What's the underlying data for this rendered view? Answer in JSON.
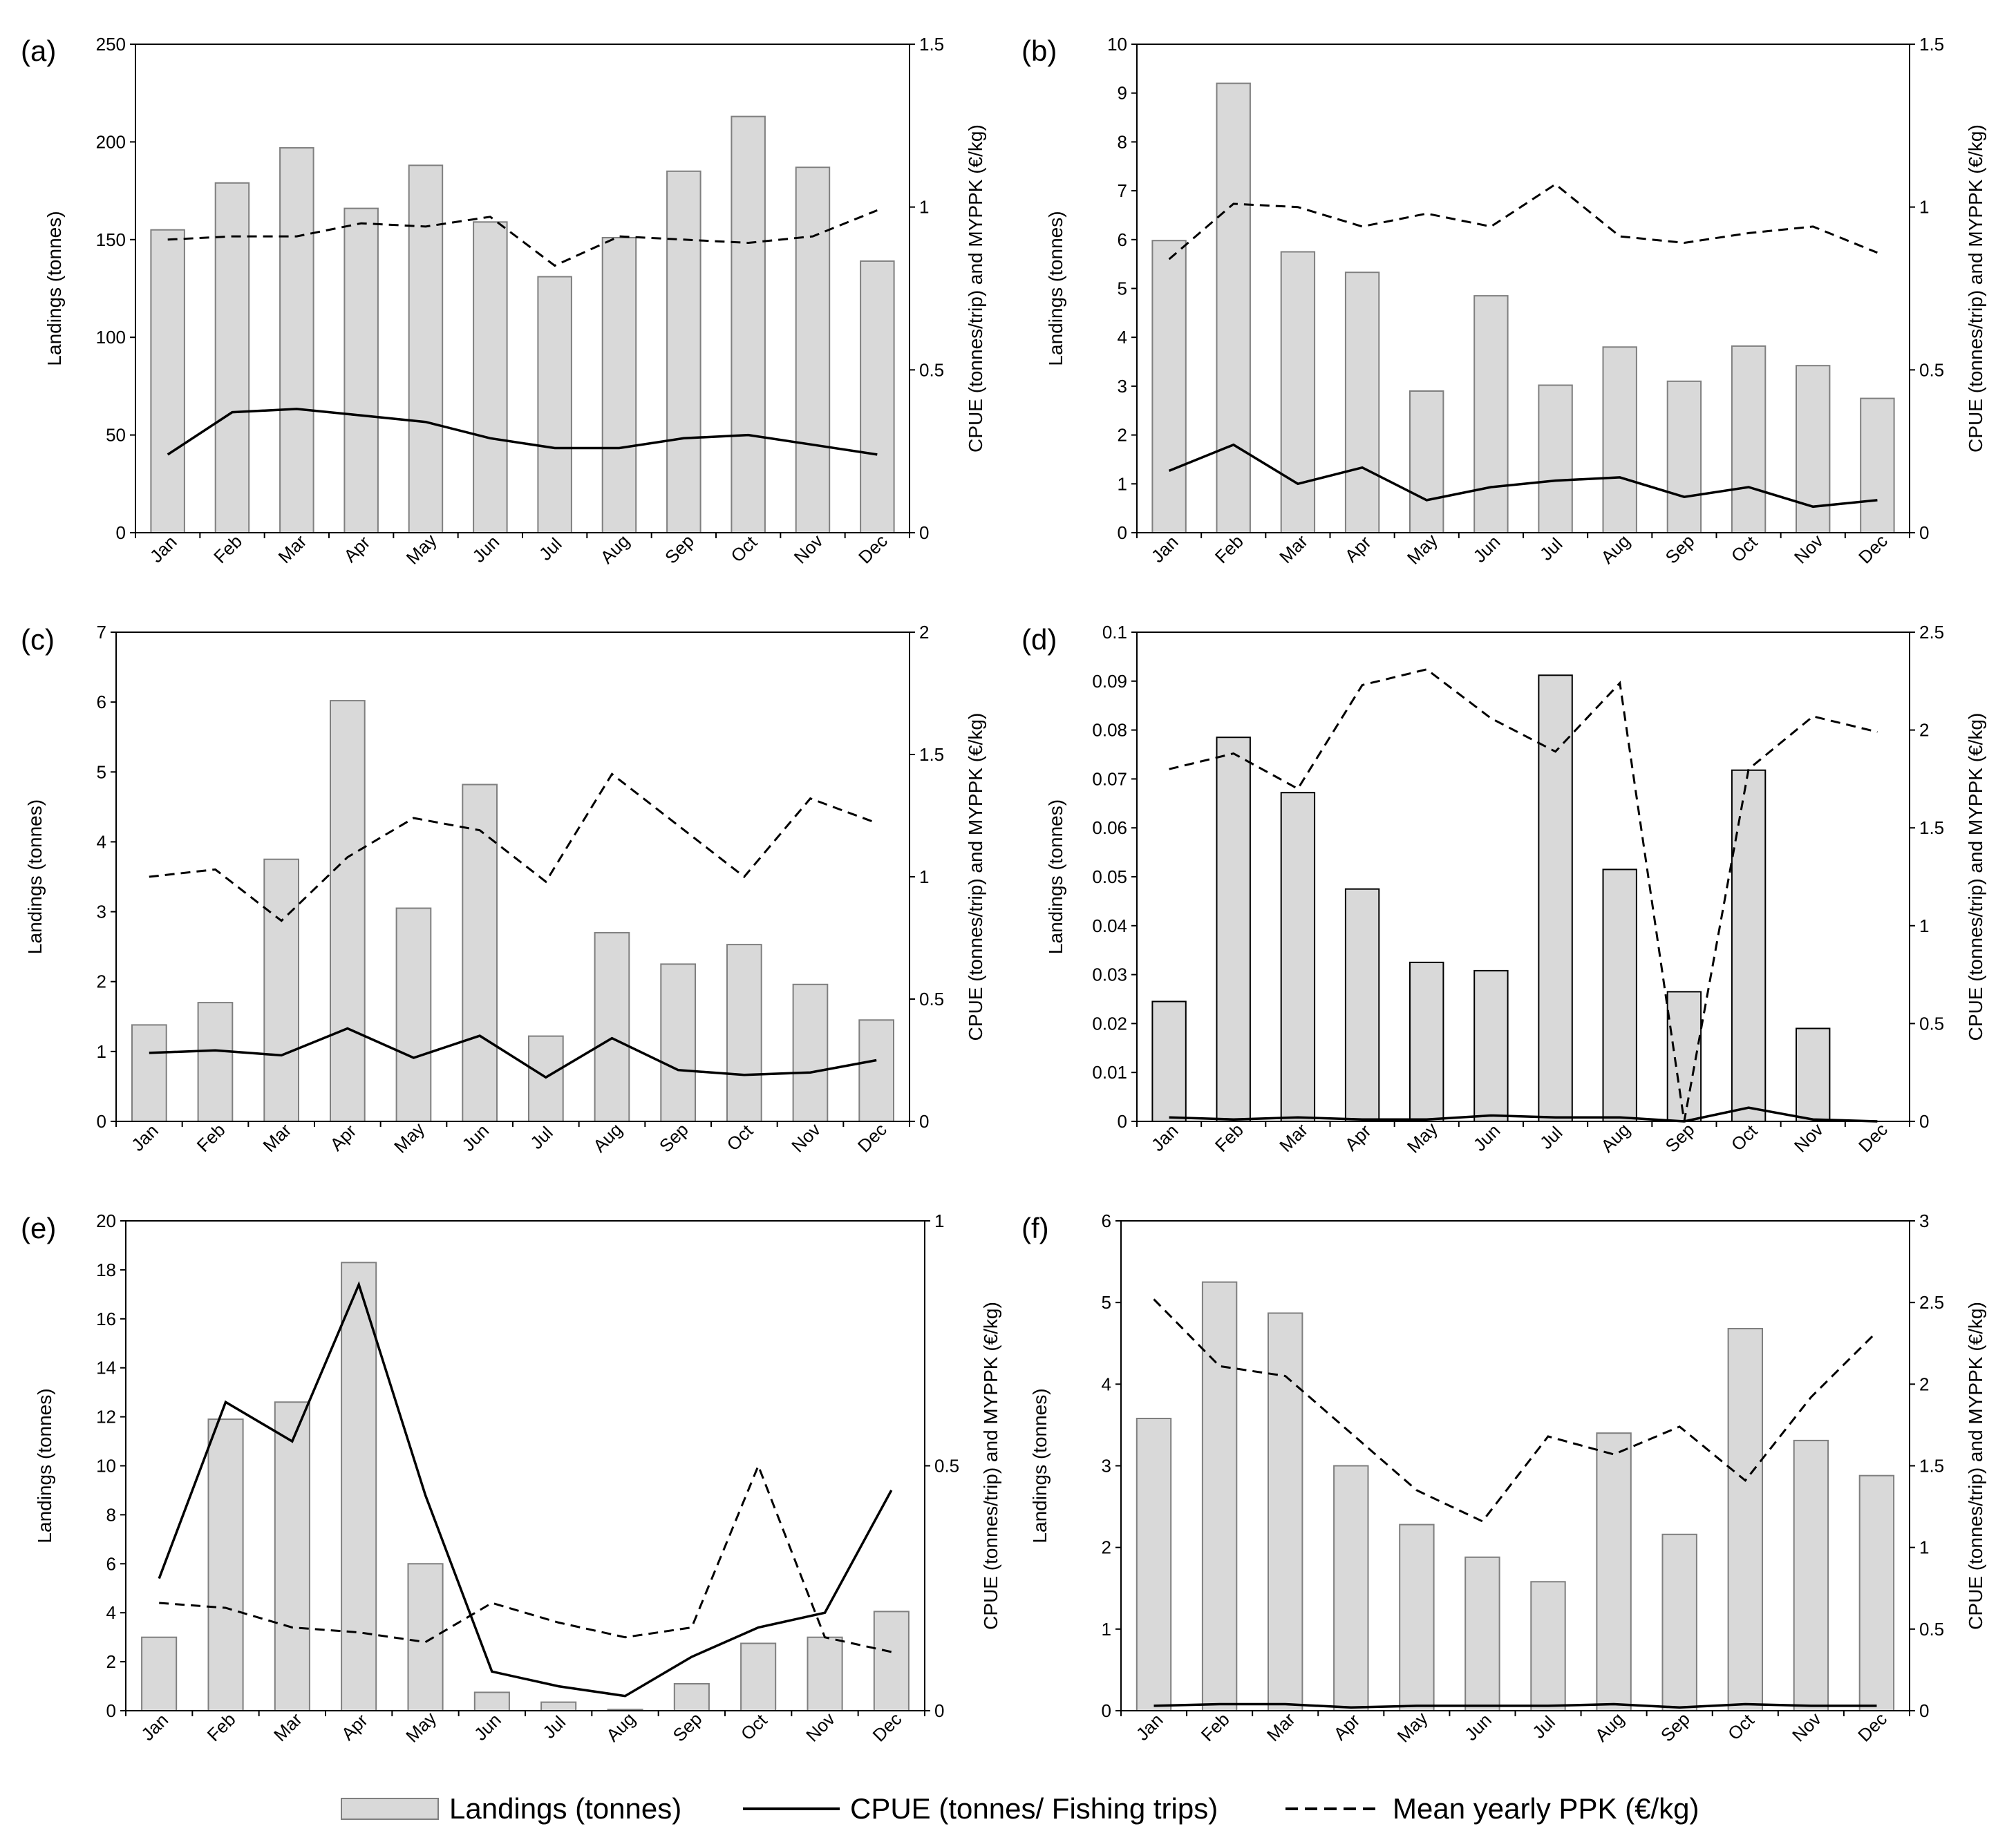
{
  "figure": {
    "months": [
      "Jan",
      "Feb",
      "Mar",
      "Apr",
      "May",
      "Jun",
      "Jul",
      "Aug",
      "Sep",
      "Oct",
      "Nov",
      "Dec"
    ],
    "left_axis_label": "Landings (tonnes)",
    "right_axis_label": "CPUE (tonnes/trip) and MYPPK (€/kg)"
  },
  "legend": {
    "landings": "Landings (tonnes)",
    "cpue": "CPUE (tonnes/ Fishing trips)",
    "ppk": "Mean yearly PPK (€/kg)"
  },
  "chart_data": [
    {
      "panel": "(a)",
      "type": "bar",
      "left_ylim": [
        0,
        250
      ],
      "left_ticks": [
        "0",
        "50",
        "100",
        "150",
        "200",
        "250"
      ],
      "right_ylim": [
        0,
        1.5
      ],
      "right_ticks": [
        "0",
        "0.5",
        "1",
        "1.5"
      ],
      "landings": [
        155,
        179,
        197,
        166,
        188,
        159,
        131,
        151,
        185,
        213,
        187,
        139
      ],
      "cpue": [
        0.24,
        0.37,
        0.38,
        0.36,
        0.34,
        0.29,
        0.26,
        0.26,
        0.29,
        0.3,
        0.27,
        0.24
      ],
      "ppk": [
        0.9,
        0.91,
        0.91,
        0.95,
        0.94,
        0.97,
        0.82,
        0.91,
        0.9,
        0.89,
        0.91,
        0.99
      ]
    },
    {
      "panel": "(b)",
      "type": "bar",
      "left_ylim": [
        0,
        10
      ],
      "left_ticks": [
        "0",
        "1",
        "2",
        "3",
        "4",
        "5",
        "6",
        "7",
        "8",
        "9",
        "10"
      ],
      "right_ylim": [
        0,
        1.5
      ],
      "right_ticks": [
        "0",
        "0.5",
        "1",
        "1.5"
      ],
      "landings": [
        5.98,
        9.2,
        5.75,
        5.33,
        2.9,
        4.85,
        3.02,
        3.8,
        3.1,
        3.82,
        3.42,
        2.75
      ],
      "cpue": [
        0.19,
        0.27,
        0.15,
        0.2,
        0.1,
        0.14,
        0.16,
        0.17,
        0.11,
        0.14,
        0.08,
        0.1
      ],
      "ppk": [
        0.84,
        1.01,
        1.0,
        0.94,
        0.98,
        0.94,
        1.07,
        0.91,
        0.89,
        0.92,
        0.94,
        0.86
      ]
    },
    {
      "panel": "(c)",
      "type": "bar",
      "left_ylim": [
        0,
        7
      ],
      "left_ticks": [
        "0",
        "1",
        "2",
        "3",
        "4",
        "5",
        "6",
        "7"
      ],
      "right_ylim": [
        0,
        2
      ],
      "right_ticks": [
        "0",
        "0.5",
        "1",
        "1.5",
        "2"
      ],
      "landings": [
        1.38,
        1.7,
        3.75,
        6.02,
        3.05,
        4.82,
        1.22,
        2.7,
        2.25,
        2.53,
        1.96,
        1.45
      ],
      "cpue": [
        0.28,
        0.29,
        0.27,
        0.38,
        0.26,
        0.35,
        0.18,
        0.34,
        0.21,
        0.19,
        0.2,
        0.25
      ],
      "ppk": [
        1.0,
        1.03,
        0.82,
        1.08,
        1.24,
        1.19,
        0.98,
        1.42,
        1.21,
        1.0,
        1.32,
        1.22
      ]
    },
    {
      "panel": "(d)",
      "type": "bar",
      "left_ylim": [
        0,
        0.1
      ],
      "left_ticks": [
        "0",
        "0.01",
        "0.02",
        "0.03",
        "0.04",
        "0.05",
        "0.06",
        "0.07",
        "0.08",
        "0.09",
        "0.1"
      ],
      "right_ylim": [
        0,
        2.5
      ],
      "right_ticks": [
        "0",
        "0.5",
        "1",
        "1.5",
        "2",
        "2.5"
      ],
      "landings": [
        0.0245,
        0.0785,
        0.0672,
        0.0475,
        0.0325,
        0.0308,
        0.0912,
        0.0515,
        0.0265,
        0.0718,
        0.019,
        0
      ],
      "cpue": [
        0.02,
        0.01,
        0.02,
        0.01,
        0.01,
        0.03,
        0.02,
        0.02,
        0.0,
        0.07,
        0.01,
        0.0
      ],
      "ppk": [
        1.8,
        1.88,
        1.7,
        2.23,
        2.31,
        2.06,
        1.89,
        2.24,
        0.0,
        1.8,
        2.07,
        1.99
      ]
    },
    {
      "panel": "(e)",
      "type": "bar",
      "left_ylim": [
        0,
        20
      ],
      "left_ticks": [
        "0",
        "2",
        "4",
        "6",
        "8",
        "10",
        "12",
        "14",
        "16",
        "18",
        "20"
      ],
      "right_ylim": [
        0,
        1
      ],
      "right_ticks": [
        "0",
        "0.5",
        "1"
      ],
      "landings": [
        3.0,
        11.9,
        12.6,
        18.3,
        6.0,
        0.75,
        0.35,
        0.05,
        1.1,
        2.75,
        3.0,
        4.05
      ],
      "cpue": [
        0.27,
        0.63,
        0.55,
        0.87,
        0.44,
        0.08,
        0.05,
        0.03,
        0.11,
        0.17,
        0.2,
        0.45
      ],
      "ppk": [
        0.22,
        0.21,
        0.17,
        0.16,
        0.14,
        0.22,
        0.18,
        0.15,
        0.17,
        0.5,
        0.15,
        0.12
      ]
    },
    {
      "panel": "(f)",
      "type": "bar",
      "left_ylim": [
        0,
        6
      ],
      "left_ticks": [
        "0",
        "1",
        "2",
        "3",
        "4",
        "5",
        "6"
      ],
      "right_ylim": [
        0,
        3
      ],
      "right_ticks": [
        "0",
        "0.5",
        "1",
        "1.5",
        "2",
        "2.5",
        "3"
      ],
      "landings": [
        3.58,
        5.25,
        4.87,
        3.0,
        2.28,
        1.88,
        1.58,
        3.4,
        2.16,
        4.68,
        3.31,
        2.88
      ],
      "cpue": [
        0.03,
        0.04,
        0.04,
        0.02,
        0.03,
        0.03,
        0.03,
        0.04,
        0.02,
        0.04,
        0.03,
        0.03
      ],
      "ppk": [
        2.52,
        2.11,
        2.05,
        1.7,
        1.35,
        1.16,
        1.68,
        1.57,
        1.74,
        1.41,
        1.92,
        2.32
      ]
    }
  ]
}
